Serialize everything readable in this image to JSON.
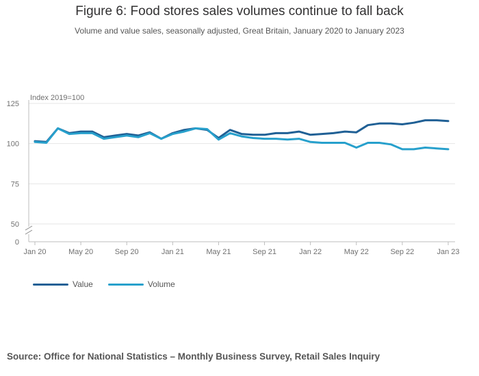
{
  "title": "Figure 6: Food stores sales volumes continue to fall back",
  "subtitle": "Volume and value sales, seasonally adjusted, Great Britain, January 2020 to January 2023",
  "source": "Source: Office for National Statistics – Monthly Business Survey, Retail Sales Inquiry",
  "chart_data": {
    "type": "line",
    "ylabel": "Index 2019=100",
    "y_ticks": [
      0,
      50,
      75,
      100,
      125
    ],
    "axis_break": [
      0,
      50
    ],
    "ylim": [
      50,
      125
    ],
    "x_tick_labels": [
      {
        "label": "Jan 20",
        "index": 0
      },
      {
        "label": "May 20",
        "index": 4
      },
      {
        "label": "Sep 20",
        "index": 8
      },
      {
        "label": "Jan 21",
        "index": 12
      },
      {
        "label": "May 21",
        "index": 16
      },
      {
        "label": "Sep 21",
        "index": 20
      },
      {
        "label": "Jan 22",
        "index": 24
      },
      {
        "label": "May 22",
        "index": 28
      },
      {
        "label": "Sep 22",
        "index": 32
      },
      {
        "label": "Jan 23",
        "index": 36
      }
    ],
    "categories": [
      "Jan 20",
      "Feb 20",
      "Mar 20",
      "Apr 20",
      "May 20",
      "Jun 20",
      "Jul 20",
      "Aug 20",
      "Sep 20",
      "Oct 20",
      "Nov 20",
      "Dec 20",
      "Jan 21",
      "Feb 21",
      "Mar 21",
      "Apr 21",
      "May 21",
      "Jun 21",
      "Jul 21",
      "Aug 21",
      "Sep 21",
      "Oct 21",
      "Nov 21",
      "Dec 21",
      "Jan 22",
      "Feb 22",
      "Mar 22",
      "Apr 22",
      "May 22",
      "Jun 22",
      "Jul 22",
      "Aug 22",
      "Sep 22",
      "Oct 22",
      "Nov 22",
      "Dec 22",
      "Jan 23"
    ],
    "series": [
      {
        "name": "Value",
        "color": "#206095",
        "values": [
          101.5,
          101.0,
          109.5,
          106.5,
          107.5,
          107.5,
          104.0,
          105.0,
          106.0,
          105.0,
          107.0,
          103.0,
          106.5,
          108.5,
          109.5,
          108.5,
          103.5,
          108.5,
          106.0,
          105.5,
          105.5,
          106.5,
          106.5,
          107.5,
          105.5,
          106.0,
          106.5,
          107.5,
          107.0,
          111.5,
          112.5,
          112.5,
          112.0,
          113.0,
          114.5,
          114.5,
          114.0
        ]
      },
      {
        "name": "Volume",
        "color": "#27a0cc",
        "values": [
          101.0,
          100.5,
          109.5,
          106.0,
          106.5,
          106.5,
          103.0,
          104.0,
          105.0,
          104.0,
          106.5,
          103.0,
          106.0,
          107.5,
          109.5,
          109.0,
          102.5,
          106.5,
          104.5,
          103.5,
          103.0,
          103.0,
          102.5,
          103.0,
          101.0,
          100.5,
          100.5,
          100.5,
          97.5,
          100.5,
          100.5,
          99.5,
          96.5,
          96.5,
          97.5,
          97.0,
          96.5
        ]
      }
    ]
  }
}
